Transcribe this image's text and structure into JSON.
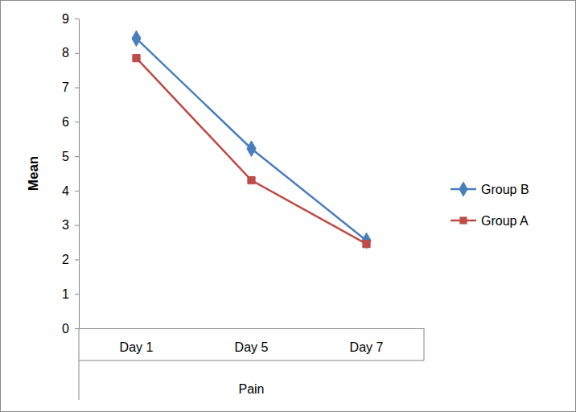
{
  "chart_data": {
    "type": "line",
    "ylabel": "Mean",
    "xlabel": "Pain",
    "categories": [
      "Day 1",
      "Day 5",
      "Day 7"
    ],
    "series": [
      {
        "name": "Group B",
        "color": "#4a7ebb",
        "marker": "diamond",
        "values": [
          8.42,
          5.22,
          2.55
        ]
      },
      {
        "name": "Group A",
        "color": "#be4b48",
        "marker": "square",
        "values": [
          7.85,
          4.3,
          2.45
        ]
      }
    ],
    "ylim": [
      0,
      9
    ],
    "yticks": [
      0,
      1,
      2,
      3,
      4,
      5,
      6,
      7,
      8,
      9
    ],
    "grid": false,
    "legend": "right"
  }
}
